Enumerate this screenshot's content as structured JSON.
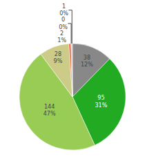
{
  "chart_data": {
    "type": "pie",
    "values": [
      38,
      95,
      144,
      28,
      2,
      0.4,
      1
    ],
    "value_labels": [
      "38\n12%",
      "95\n31%",
      "144\n47%",
      "28\n9%",
      "2\n1%",
      "0\n0%",
      "1\n0%"
    ],
    "colors": [
      "#888888",
      "#22aa22",
      "#99cc55",
      "#cccc88",
      "#ee6644",
      "#ffffff",
      "#bbbbbb"
    ]
  }
}
